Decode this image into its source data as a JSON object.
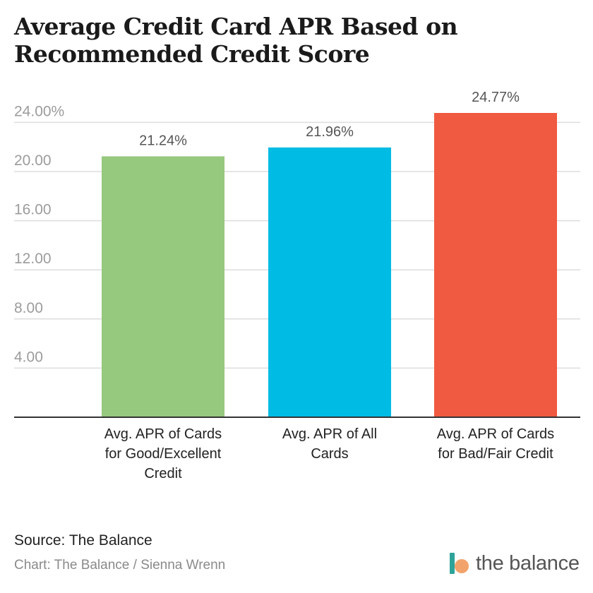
{
  "title_lines": [
    "Average Credit Card APR Based on",
    "Recommended Credit Score"
  ],
  "source": "Source: The Balance",
  "credit": "Chart: The Balance / Sienna Wrenn",
  "logo": {
    "text": "the balance",
    "icon": "the-balance-logo-icon",
    "bar_color": "#2fa39a",
    "dot_color": "#f2a36b"
  },
  "chart_data": {
    "type": "bar",
    "title": "Average Credit Card APR Based on Recommended Credit Score",
    "categories": [
      [
        "Avg. APR of Cards",
        "for Good/Excellent",
        "Credit"
      ],
      [
        "Avg. APR of All",
        "Cards"
      ],
      [
        "Avg. APR of Cards",
        "for Bad/Fair Credit"
      ]
    ],
    "values": [
      21.24,
      21.96,
      24.77
    ],
    "value_labels": [
      "21.24%",
      "21.96%",
      "24.77%"
    ],
    "colors": [
      "#96c87e",
      "#00bce4",
      "#f05a40"
    ],
    "yticks": [
      4,
      8,
      12,
      16,
      20,
      24
    ],
    "ytick_labels": [
      "4.00",
      "8.00",
      "12.00",
      "16.00",
      "20.00",
      "24.00%"
    ],
    "ylim": [
      0,
      24.77
    ],
    "grid": true
  }
}
